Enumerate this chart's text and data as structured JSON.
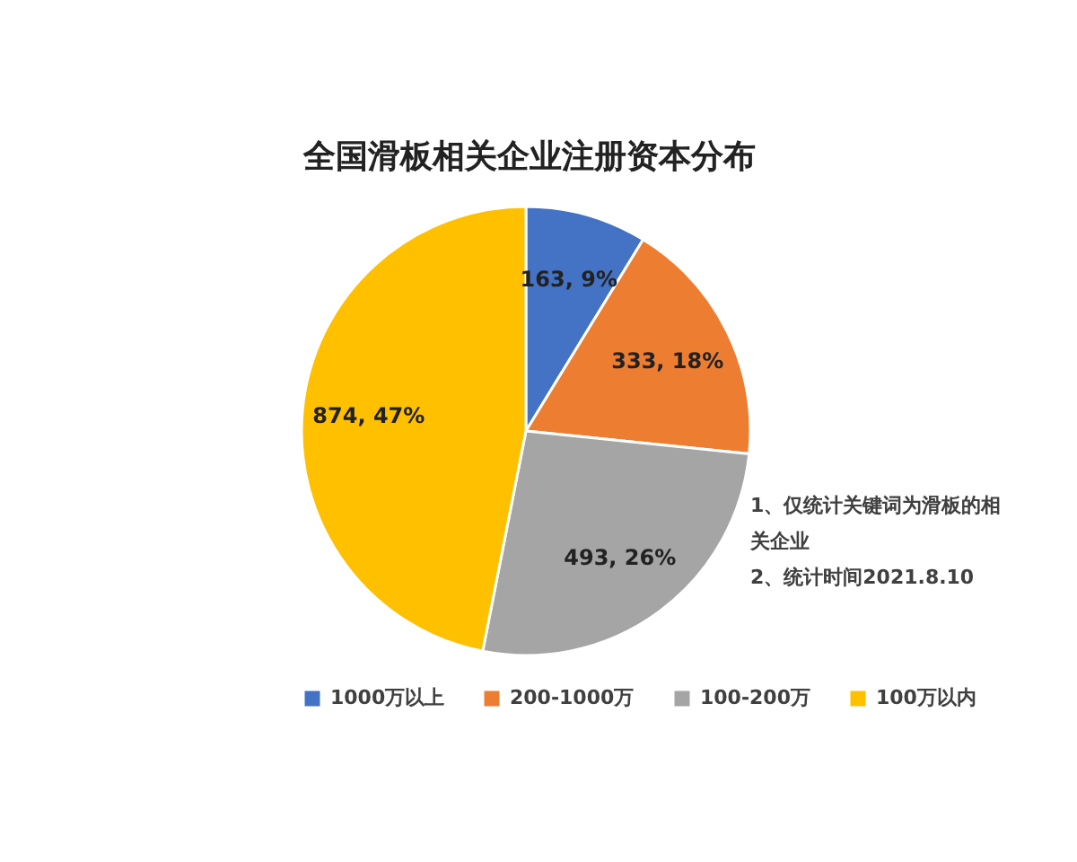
{
  "chart_data": {
    "type": "pie",
    "title": "全国滑板相关企业注册资本分布",
    "categories": [
      "1000万以上",
      "200-1000万",
      "100-200万",
      "100万以内"
    ],
    "values": [
      163,
      333,
      493,
      874
    ],
    "colors": [
      "#4472c4",
      "#ed7d31",
      "#a5a5a5",
      "#ffc000"
    ],
    "value_labels": [
      "163, 9%",
      "333, 18%",
      "493, 26%",
      "874, 47%"
    ],
    "legend": "bottom",
    "annotations": [
      "1、仅统计关键词为滑板的相关企业",
      "2、统计时间2021.8.10"
    ]
  }
}
